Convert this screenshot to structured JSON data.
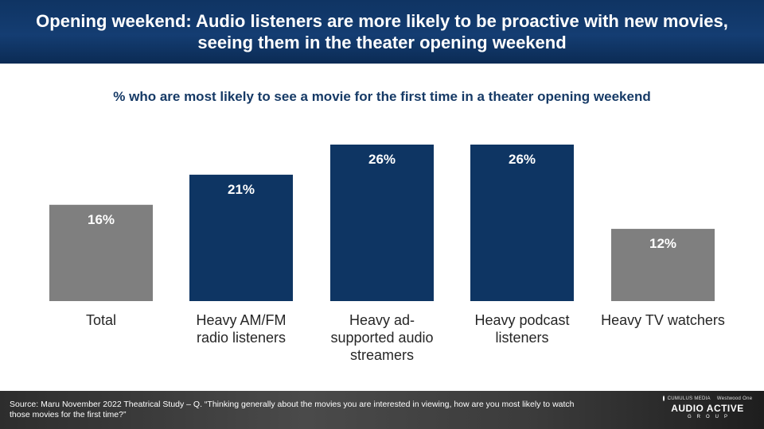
{
  "header": {
    "title": "Opening weekend: Audio listeners are more likely to be proactive with new movies, seeing them in the theater opening weekend"
  },
  "chart_data": {
    "type": "bar",
    "title": "% who are most likely to see a movie for the first time in a theater opening weekend",
    "categories": [
      [
        "Total"
      ],
      [
        "Heavy AM/FM",
        "radio listeners"
      ],
      [
        "Heavy ad-",
        "supported audio",
        "streamers"
      ],
      [
        "Heavy podcast",
        "listeners"
      ],
      [
        "Heavy TV watchers"
      ]
    ],
    "values": [
      16,
      21,
      26,
      26,
      12
    ],
    "value_labels": [
      "16%",
      "21%",
      "26%",
      "26%",
      "12%"
    ],
    "bar_colors": [
      "#7f7f7f",
      "#0e3563",
      "#0e3563",
      "#0e3563",
      "#7f7f7f"
    ],
    "ylim": [
      0,
      26
    ],
    "grid": false,
    "legend": "none"
  },
  "footer": {
    "source": "Source: Maru November 2022 Theatrical Study – Q. “Thinking generally about the movies you are interested in viewing, how are you most likely to watch those movies for the first time?”",
    "logo_top_left": "CUMULUS MEDIA",
    "logo_top_right": "Westwood One",
    "logo_main": "AUDIO ACTIVE",
    "logo_sub": "GROUP"
  },
  "colors": {
    "header_bg": "#143d72",
    "title_text": "#163a66",
    "bar_navy": "#0e3563",
    "bar_gray": "#7f7f7f"
  }
}
